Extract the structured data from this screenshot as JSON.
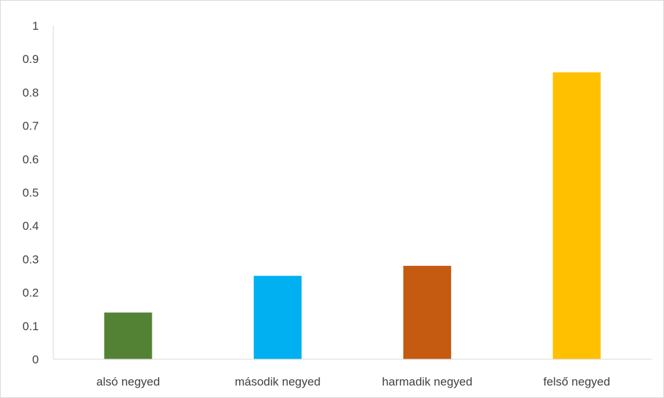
{
  "chart_data": {
    "type": "bar",
    "title": "",
    "xlabel": "",
    "ylabel": "",
    "categories": [
      "alsó negyed",
      "második negyed",
      "harmadik negyed",
      "felső negyed"
    ],
    "values": [
      0.14,
      0.25,
      0.28,
      0.86
    ],
    "colors": [
      "#548235",
      "#00b0f0",
      "#c55a11",
      "#ffc000"
    ],
    "ylim": [
      0,
      1
    ],
    "yticks": [
      "0",
      "0.1",
      "0.2",
      "0.3",
      "0.4",
      "0.5",
      "0.6",
      "0.7",
      "0.8",
      "0.9",
      "1"
    ],
    "grid": false,
    "legend": "none"
  }
}
